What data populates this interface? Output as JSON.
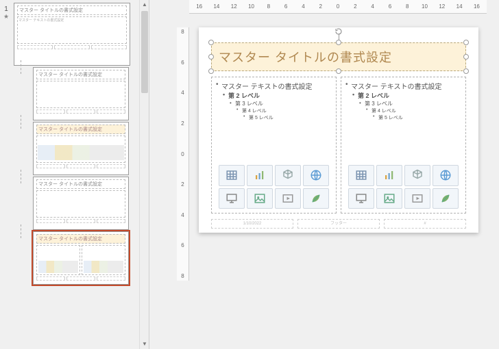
{
  "ruler_h": [
    "16",
    "14",
    "12",
    "10",
    "8",
    "6",
    "4",
    "2",
    "0",
    "2",
    "4",
    "6",
    "8",
    "10",
    "12",
    "14",
    "16"
  ],
  "ruler_v": [
    "8",
    "6",
    "4",
    "2",
    "0",
    "2",
    "4",
    "6",
    "8"
  ],
  "thumbnails": {
    "index": "1",
    "star": "★",
    "master_title": "マスター タイトルの書式設定",
    "master_sub": "マスター テキストの書式設定",
    "layouts": [
      {
        "title": "マスター タイトルの書式設定",
        "hl": false,
        "selected": false,
        "two": false
      },
      {
        "title": "マスター タイトルの書式設定",
        "hl": true,
        "selected": false,
        "two": false
      },
      {
        "title": "マスター タイトルの書式設定",
        "hl": false,
        "selected": false,
        "two": false
      },
      {
        "title": "マスター タイトルの書式設定",
        "hl": true,
        "selected": true,
        "two": true
      }
    ]
  },
  "slide": {
    "title": "マスター タイトルの書式設定",
    "levels": {
      "l1": "マスター テキストの書式設定",
      "l2": "第 2 レベル",
      "l3": "第 3 レベル",
      "l4": "第 4 レベル",
      "l5": "第 5 レベル"
    },
    "footer_date": "1/10/2022",
    "footer_center": "フッター",
    "footer_num": "#"
  },
  "colors": {
    "title_bg": "#fdf2d9",
    "title_text": "#b08850",
    "accent": "#c44a2a"
  },
  "icons": [
    "table",
    "chart",
    "3d",
    "globe",
    "monitor",
    "image",
    "video",
    "leaf"
  ]
}
